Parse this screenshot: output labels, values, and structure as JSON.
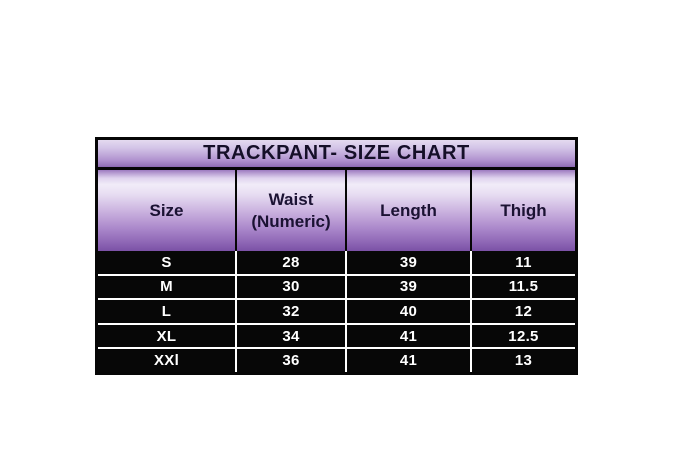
{
  "chart_data": {
    "type": "table",
    "title": "TRACKPANT- SIZE CHART",
    "columns": [
      "Size",
      "Waist (Numeric)",
      "Length",
      "Thigh"
    ],
    "rows": [
      [
        "S",
        28,
        39,
        11
      ],
      [
        "M",
        30,
        39,
        11.5
      ],
      [
        "L",
        32,
        40,
        12
      ],
      [
        "XL",
        34,
        41,
        12.5
      ],
      [
        "XXl",
        36,
        41,
        13
      ]
    ]
  },
  "colors": {
    "title_gradient_top": "#e4daf0",
    "title_gradient_bottom": "#8a66b1",
    "header_gradient_light": "#f1ecf8",
    "header_gradient_dark": "#7b51a6",
    "header_text": "#1b1233",
    "row_background": "#070707",
    "row_text": "#ffffff",
    "border": "#060606",
    "page_background": "#ffffff"
  }
}
